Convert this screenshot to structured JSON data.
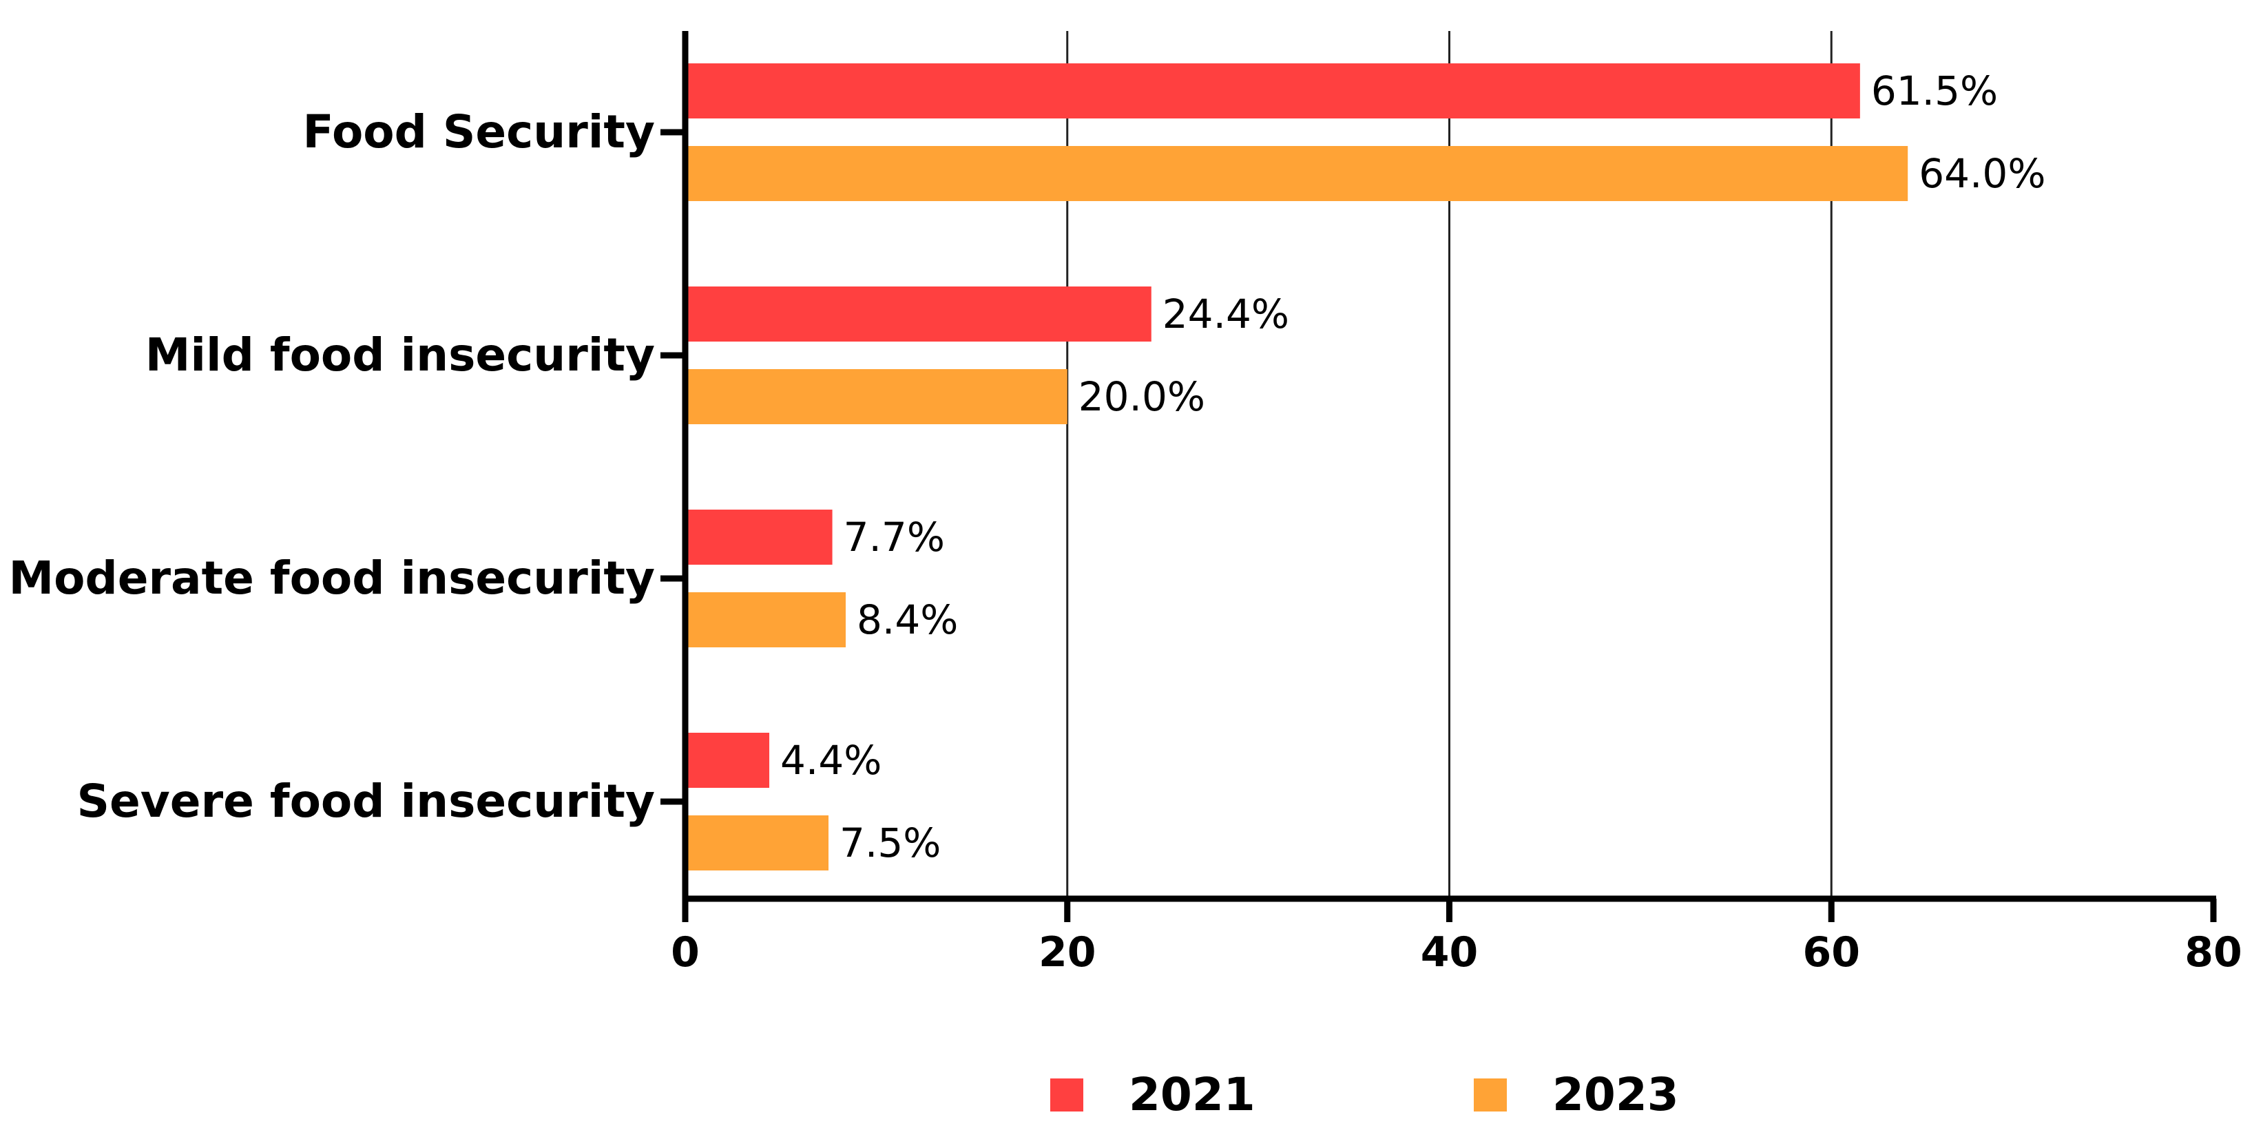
{
  "chart_data": {
    "type": "bar",
    "orientation": "horizontal",
    "categories": [
      "Food Security",
      "Mild food insecurity",
      "Moderate food insecurity",
      "Severe food insecurity"
    ],
    "series": [
      {
        "name": "2021",
        "color": "#FF4040",
        "values": [
          61.5,
          24.4,
          7.7,
          4.4
        ],
        "labels": [
          "61.5%",
          "24.4%",
          "7.7%",
          "4.4%"
        ]
      },
      {
        "name": "2023",
        "color": "#FFA336",
        "values": [
          64.0,
          20.0,
          8.4,
          7.5
        ],
        "labels": [
          "64.0%",
          "20.0%",
          "8.4%",
          "7.5%"
        ]
      }
    ],
    "xlim": [
      0,
      80
    ],
    "xticks": [
      0,
      20,
      40,
      60,
      80
    ],
    "xtick_labels": [
      "0",
      "20",
      "40",
      "60",
      "80"
    ],
    "grid": "vertical",
    "legend": "bottom-center",
    "title": "",
    "xlabel": "",
    "ylabel": ""
  }
}
